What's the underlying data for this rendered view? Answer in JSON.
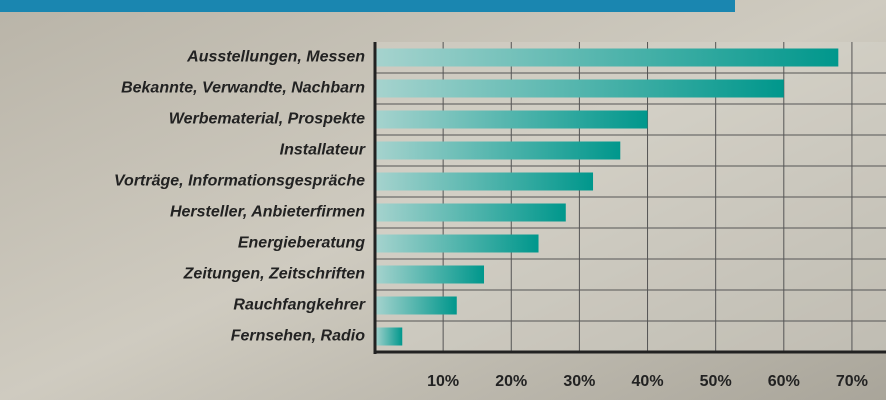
{
  "chart_data": {
    "type": "barh",
    "categories": [
      "Ausstellungen, Messen",
      "Bekannte, Verwandte, Nachbarn",
      "Werbematerial, Prospekte",
      "Installateur",
      "Vorträge, Informationsgespräche",
      "Hersteller, Anbieterfirmen",
      "Energieberatung",
      "Zeitungen, Zeitschriften",
      "Rauchfangkehrer",
      "Fernsehen, Radio"
    ],
    "values": [
      68,
      60,
      40,
      36,
      32,
      28,
      24,
      16,
      12,
      4
    ],
    "color": "#00978c",
    "xlim": [
      0,
      75
    ],
    "xticks": [
      {
        "value": 10,
        "label": "10%"
      },
      {
        "value": 20,
        "label": "20%"
      },
      {
        "value": 30,
        "label": "30%"
      },
      {
        "value": 40,
        "label": "40%"
      },
      {
        "value": 50,
        "label": "50%"
      },
      {
        "value": 60,
        "label": "60%"
      },
      {
        "value": 70,
        "label": "70%"
      }
    ],
    "grid": true
  }
}
